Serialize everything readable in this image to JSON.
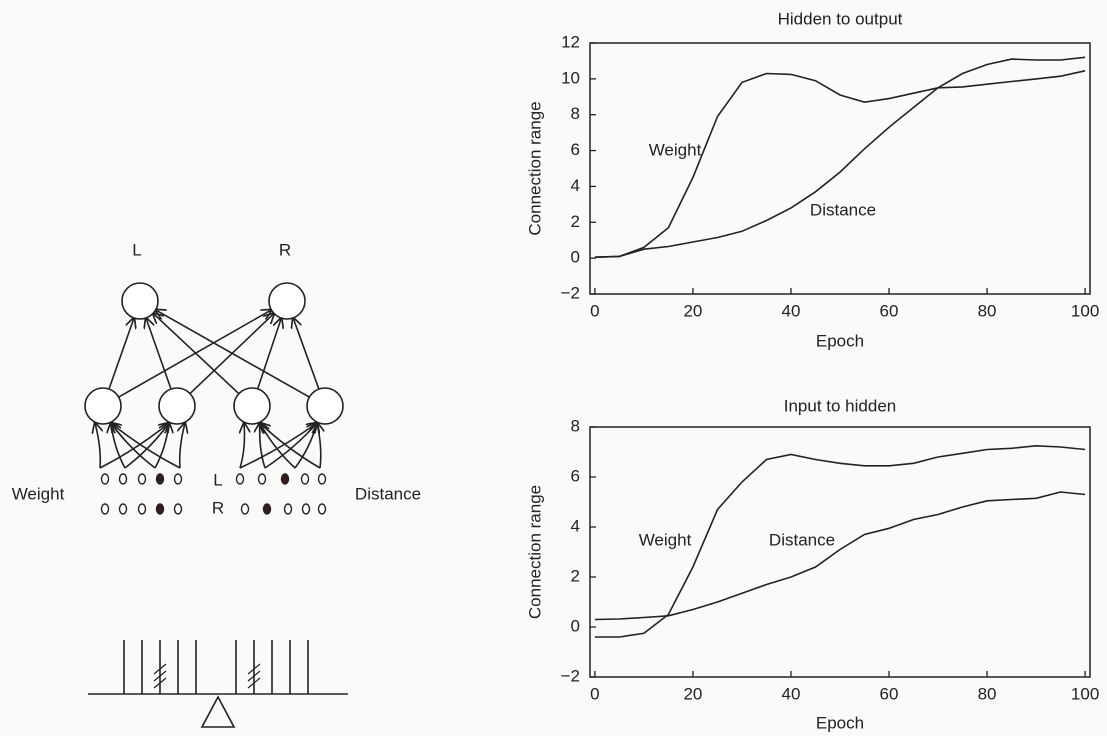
{
  "diagram": {
    "output_labels": [
      "L",
      "R"
    ],
    "input_labels": [
      "Weight",
      "Distance"
    ],
    "row_labels": [
      "L",
      "R"
    ]
  },
  "chart_data": [
    {
      "type": "line",
      "title": "Hidden to output",
      "x_label": "Epoch",
      "y_label": "Connection range",
      "x": [
        0,
        5,
        10,
        15,
        20,
        25,
        30,
        35,
        40,
        45,
        50,
        55,
        60,
        65,
        70,
        75,
        80,
        85,
        90,
        95,
        100
      ],
      "series": [
        {
          "name": "Weight",
          "color": "#222222",
          "values": [
            0.05,
            0.1,
            0.6,
            1.7,
            4.5,
            7.9,
            9.8,
            10.3,
            10.25,
            9.9,
            9.1,
            8.7,
            8.9,
            9.2,
            9.5,
            9.55,
            9.7,
            9.85,
            10,
            10.15,
            10.45
          ]
        },
        {
          "name": "Distance",
          "color": "#222222",
          "values": [
            0.05,
            0.1,
            0.5,
            0.65,
            0.9,
            1.15,
            1.5,
            2.1,
            2.8,
            3.7,
            4.8,
            6.1,
            7.3,
            8.4,
            9.5,
            10.3,
            10.8,
            11.1,
            11.05,
            11.05,
            11.2
          ]
        }
      ],
      "xlim": [
        -1,
        101
      ],
      "ylim": [
        -2,
        12
      ],
      "xticks": [
        0,
        20,
        40,
        60,
        80,
        100
      ],
      "yticks": [
        {
          "value": -2,
          "label": "−2"
        },
        0,
        2,
        4,
        6,
        8,
        10,
        12
      ]
    },
    {
      "type": "line",
      "title": "Input to hidden",
      "x_label": "Epoch",
      "y_label": "Connection range",
      "x": [
        0,
        5,
        10,
        15,
        20,
        25,
        30,
        35,
        40,
        45,
        50,
        55,
        60,
        65,
        70,
        75,
        80,
        85,
        90,
        95,
        100
      ],
      "series": [
        {
          "name": "Weight",
          "color": "#222222",
          "values": [
            -0.4,
            -0.4,
            -0.25,
            0.5,
            2.4,
            4.7,
            5.8,
            6.7,
            6.9,
            6.7,
            6.55,
            6.45,
            6.45,
            6.55,
            6.8,
            6.95,
            7.1,
            7.15,
            7.25,
            7.2,
            7.1
          ]
        },
        {
          "name": "Distance",
          "color": "#222222",
          "values": [
            0.3,
            0.32,
            0.38,
            0.45,
            0.7,
            1.0,
            1.35,
            1.7,
            2.0,
            2.4,
            3.1,
            3.7,
            3.95,
            4.3,
            4.5,
            4.8,
            5.05,
            5.1,
            5.15,
            5.4,
            5.3
          ]
        }
      ],
      "xlim": [
        -1,
        101
      ],
      "ylim": [
        -2,
        8
      ],
      "xticks": [
        0,
        20,
        40,
        60,
        80,
        100
      ],
      "yticks": [
        {
          "value": -2,
          "label": "−2"
        },
        0,
        2,
        4,
        6,
        8
      ]
    }
  ]
}
